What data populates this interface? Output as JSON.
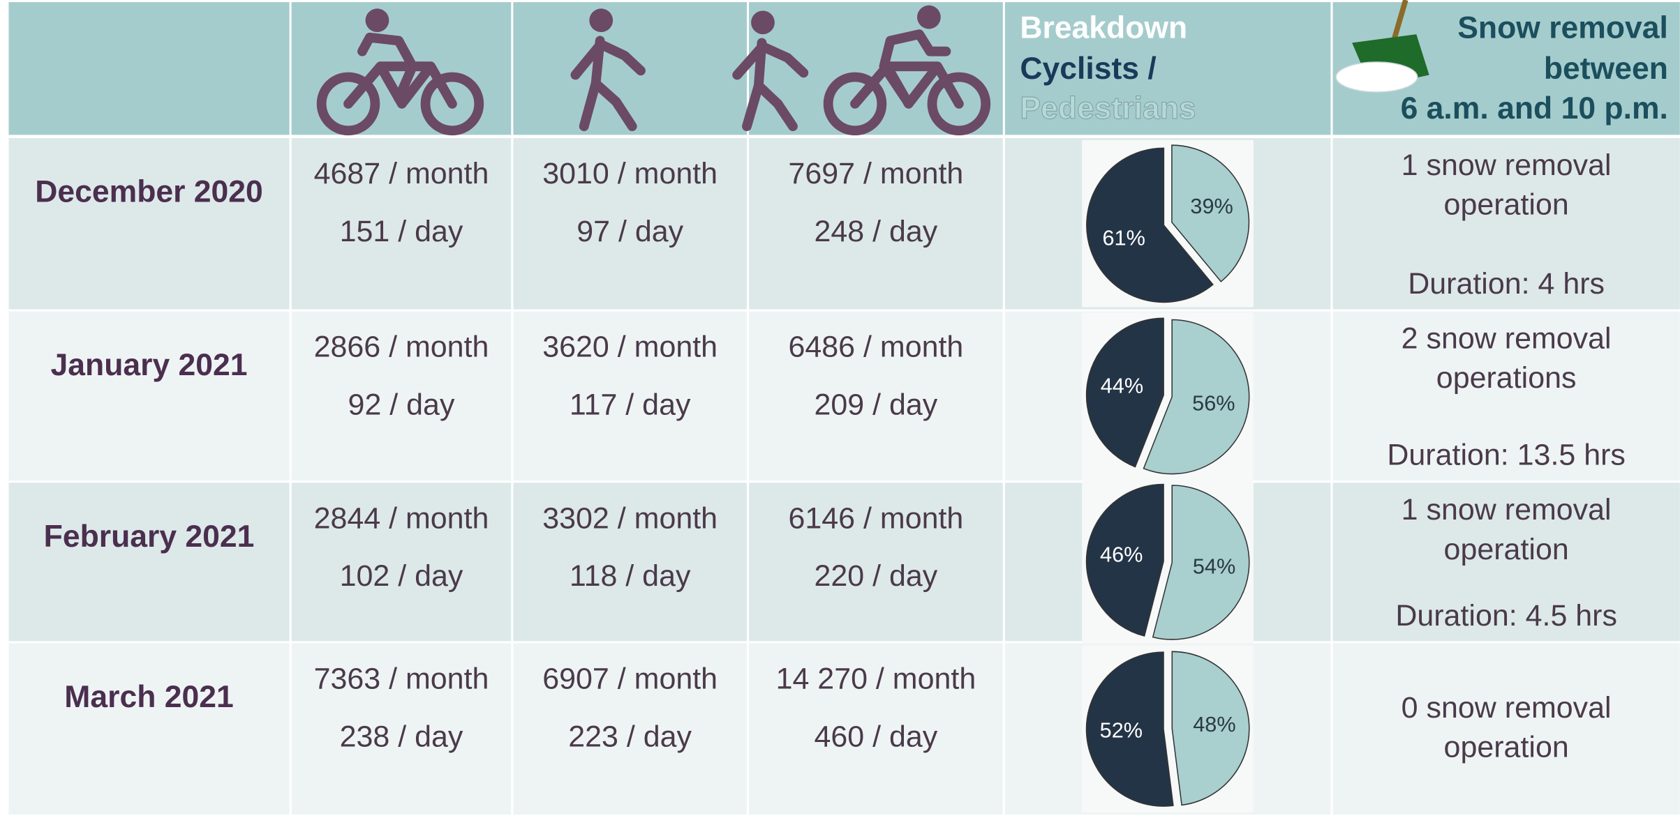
{
  "header": {
    "breakdown": [
      "Breakdown",
      "Cyclists /",
      "Pedestrians"
    ],
    "snow_removal": [
      "Snow removal",
      "between",
      "6 a.m. and 10 p.m."
    ]
  },
  "rows": [
    {
      "period": "December 2020",
      "cyclists": [
        "4687 / month",
        "151 / day"
      ],
      "pedestrians": [
        "3010 / month",
        "97 / day"
      ],
      "total": [
        "7697 / month",
        "248 / day"
      ],
      "breakdown": {
        "type": "pie",
        "values": [
          61,
          39
        ],
        "value_labels": [
          "61%",
          "39%"
        ],
        "colors": [
          "#243447",
          "#a9cfcf"
        ]
      },
      "snow": [
        "1 snow removal",
        "operation"
      ],
      "duration": "Duration: 4 hrs"
    },
    {
      "period": "January 2021",
      "cyclists": [
        "2866 / month",
        "92 / day"
      ],
      "pedestrians": [
        "3620 / month",
        "117 / day"
      ],
      "total": [
        "6486 / month",
        "209 / day"
      ],
      "breakdown": {
        "type": "pie",
        "values": [
          44,
          56
        ],
        "value_labels": [
          "44%",
          "56%"
        ],
        "colors": [
          "#243447",
          "#a9cfcf"
        ]
      },
      "snow": [
        "2 snow removal",
        "operations"
      ],
      "duration": "Duration: 13.5 hrs"
    },
    {
      "period": "February 2021",
      "cyclists": [
        "2844 / month",
        "102 / day"
      ],
      "pedestrians": [
        "3302 / month",
        "118 / day"
      ],
      "total": [
        "6146 / month",
        "220 / day"
      ],
      "breakdown": {
        "type": "pie",
        "values": [
          46,
          54
        ],
        "value_labels": [
          "46%",
          "54%"
        ],
        "colors": [
          "#243447",
          "#a9cfcf"
        ]
      },
      "snow": [
        "1 snow removal",
        "operation"
      ],
      "duration": "Duration: 4.5 hrs"
    },
    {
      "period": "March 2021",
      "cyclists": [
        "7363 / month",
        "238 / day"
      ],
      "pedestrians": [
        "6907 / month",
        "223 / day"
      ],
      "total": [
        "14 270 / month",
        "460 / day"
      ],
      "breakdown": {
        "type": "pie",
        "values": [
          52,
          48
        ],
        "value_labels": [
          "52%",
          "48%"
        ],
        "colors": [
          "#243447",
          "#a9cfcf"
        ]
      },
      "snow": [
        "0 snow removal",
        "operation"
      ]
    }
  ]
}
